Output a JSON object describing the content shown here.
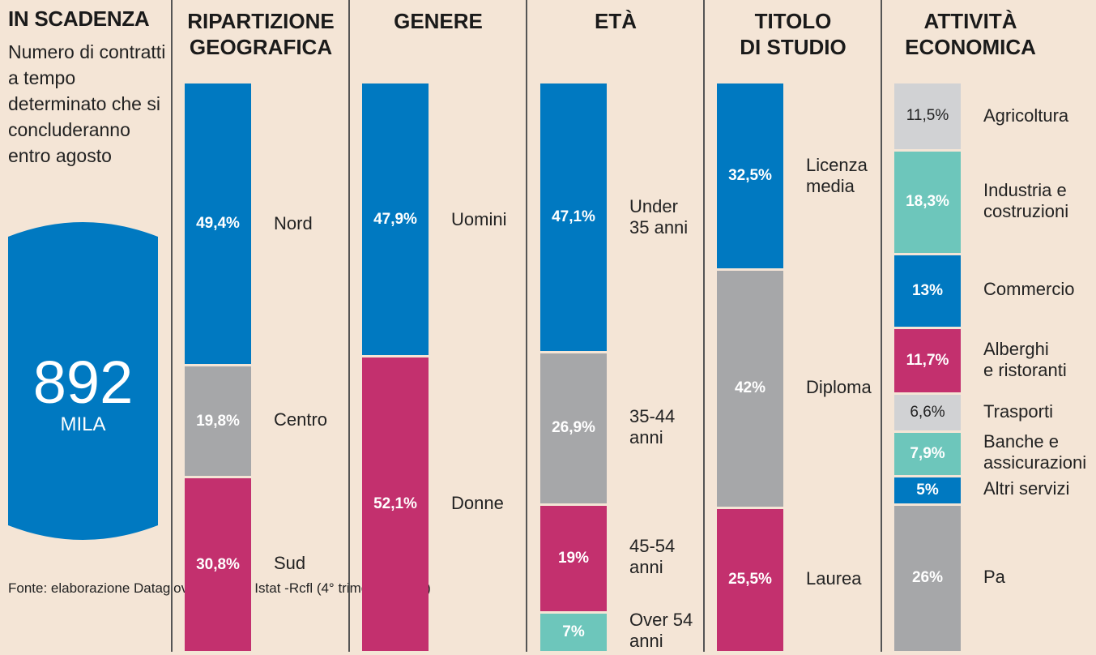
{
  "intro": {
    "title": "IN SCADENZA",
    "text": "Numero di contratti a tempo determinato che si concluderanno entro agosto",
    "total_value": "892",
    "total_unit": "MILA",
    "source": "Fonte: elaborazione Datagiovani su dati Istat -Rcfl (4° trimestre 2017)"
  },
  "colors": {
    "blue": "#0079c1",
    "gray": "#a6a7a9",
    "magenta": "#c3306e",
    "teal": "#6dc6bb",
    "lightgray": "#d1d2d4",
    "background": "#f4e5d6"
  },
  "chart_data": [
    {
      "type": "bar",
      "stacked": true,
      "title": "RIPARTIZIONE GEOGRAFICA",
      "categories": [
        "Nord",
        "Centro",
        "Sud"
      ],
      "values": [
        49.4,
        19.8,
        30.8
      ],
      "labels": [
        "49,4%",
        "19,8%",
        "30,8%"
      ],
      "colors": [
        "blue",
        "gray",
        "magenta"
      ],
      "dark_text": [
        false,
        false,
        false
      ]
    },
    {
      "type": "bar",
      "stacked": true,
      "title": "GENERE",
      "categories": [
        "Uomini",
        "Donne"
      ],
      "values": [
        47.9,
        52.1
      ],
      "labels": [
        "47,9%",
        "52,1%"
      ],
      "colors": [
        "blue",
        "magenta"
      ],
      "dark_text": [
        false,
        false
      ]
    },
    {
      "type": "bar",
      "stacked": true,
      "title": "ETÀ",
      "categories": [
        "Under 35 anni",
        "35-44 anni",
        "45-54 anni",
        "Over 54 anni"
      ],
      "values": [
        47.1,
        26.9,
        19,
        7
      ],
      "labels": [
        "47,1%",
        "26,9%",
        "19%",
        "7%"
      ],
      "colors": [
        "blue",
        "gray",
        "magenta",
        "teal"
      ],
      "dark_text": [
        false,
        false,
        false,
        false
      ]
    },
    {
      "type": "bar",
      "stacked": true,
      "title": "TITOLO DI STUDIO",
      "categories": [
        "Licenza media",
        "Diploma",
        "Laurea"
      ],
      "values": [
        32.5,
        42,
        25.5
      ],
      "labels": [
        "32,5%",
        "42%",
        "25,5%"
      ],
      "colors": [
        "blue",
        "gray",
        "magenta"
      ],
      "dark_text": [
        false,
        false,
        false
      ]
    },
    {
      "type": "bar",
      "stacked": true,
      "title": "ATTIVITÀ ECONOMICA",
      "categories": [
        "Agricoltura",
        "Industria e costruzioni",
        "Commercio",
        "Alberghi e ristoranti",
        "Trasporti",
        "Banche e assicurazioni",
        "Altri servizi",
        "Pa"
      ],
      "values": [
        11.5,
        18.3,
        13,
        11.7,
        6.6,
        7.9,
        5,
        26
      ],
      "labels": [
        "11,5%",
        "18,3%",
        "13%",
        "11,7%",
        "6,6%",
        "7,9%",
        "5%",
        "26%"
      ],
      "colors": [
        "lightgray",
        "teal",
        "blue",
        "magenta",
        "lightgray",
        "teal",
        "blue",
        "gray"
      ],
      "dark_text": [
        true,
        false,
        false,
        false,
        true,
        false,
        false,
        false
      ]
    }
  ],
  "label_lines": [
    [
      "Nord",
      "Centro",
      "Sud"
    ],
    [
      "Uomini",
      "Donne"
    ],
    [
      "Under\n35 anni",
      "35-44\nanni",
      "45-54\nanni",
      "Over 54\nanni"
    ],
    [
      "Licenza\nmedia",
      "Diploma",
      "Laurea"
    ],
    [
      "Agricoltura",
      "Industria e\ncostruzioni",
      "Commercio",
      "Alberghi\ne ristoranti",
      "Trasporti",
      "Banche e\nassicurazioni",
      "Altri servizi",
      "Pa"
    ]
  ],
  "title_lines": [
    [
      "RIPARTIZIONE",
      "GEOGRAFICA"
    ],
    [
      "GENERE"
    ],
    [
      "ETÀ"
    ],
    [
      "TITOLO",
      "DI STUDIO"
    ],
    [
      "ATTIVITÀ",
      "ECONOMICA"
    ]
  ]
}
